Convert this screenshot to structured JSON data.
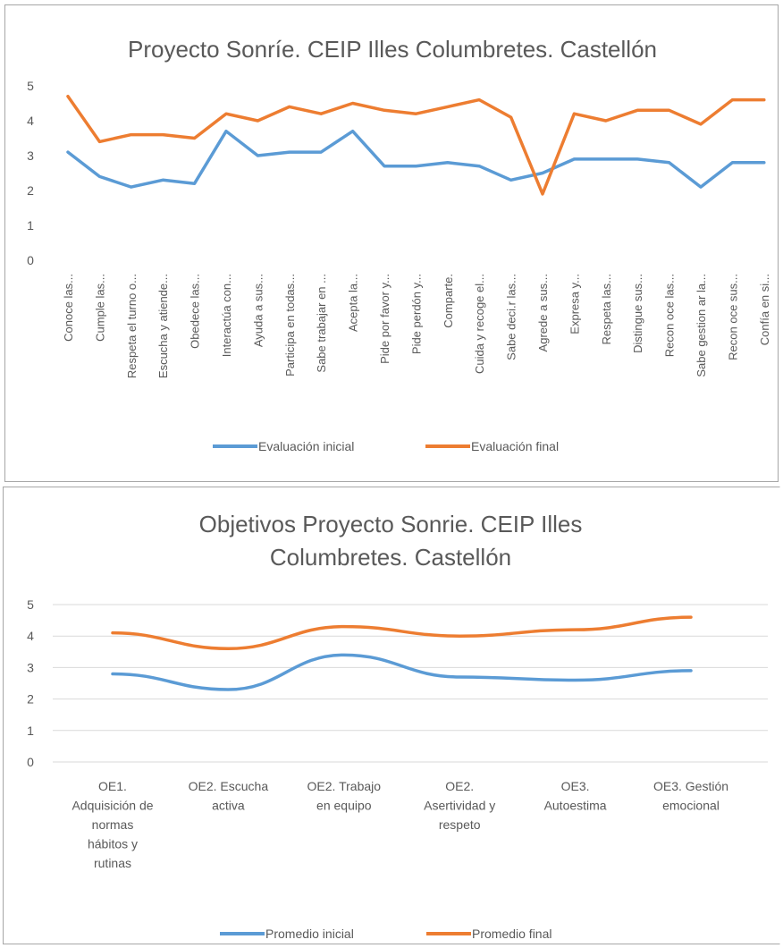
{
  "charts": [
    {
      "type": "line",
      "title": "Proyecto Sonríe. CEIP Illes Columbretes. Castellón",
      "title_lines": [
        "Proyecto Sonríe. CEIP Illes Columbretes. Castellón"
      ],
      "yticks": [
        0,
        1,
        2,
        3,
        4,
        5
      ],
      "ylim": [
        0,
        5
      ],
      "grid": false,
      "legend_position": "bottom",
      "categories": [
        "Conoce las...",
        "Cumple las...",
        "Respeta el turno o...",
        "Escucha y atiende...",
        "Obedece las...",
        "Interactúa con...",
        "Ayuda a sus...",
        "Participa en todas...",
        "Sabe trabajar en ...",
        "Acepta la...",
        "Pide por favor y...",
        "Pide perdón y...",
        "Comparte.",
        "Cuida y recoge el...",
        "Sabe deci.r las...",
        "Agrede a sus...",
        "Expresa y...",
        "Respeta las...",
        "Distingue sus...",
        "Recon oce las...",
        "Sabe gestion ar la...",
        "Recon oce sus...",
        "Confía en si..."
      ],
      "series": [
        {
          "name": "Evaluación inicial",
          "color": "#5b9bd5",
          "values": [
            3.1,
            2.4,
            2.1,
            2.3,
            2.2,
            3.7,
            3.0,
            3.1,
            3.1,
            3.7,
            2.7,
            2.7,
            2.8,
            2.7,
            2.3,
            2.5,
            2.9,
            2.9,
            2.9,
            2.8,
            2.1,
            2.8,
            2.8
          ]
        },
        {
          "name": "Evaluación final",
          "color": "#ed7d31",
          "values": [
            4.7,
            3.4,
            3.6,
            3.6,
            3.5,
            4.2,
            4.0,
            4.4,
            4.2,
            4.5,
            4.3,
            4.2,
            4.4,
            4.6,
            4.1,
            1.9,
            4.2,
            4.0,
            4.3,
            4.3,
            3.9,
            4.6,
            4.6
          ]
        }
      ]
    },
    {
      "type": "line",
      "title": "Objetivos Proyecto Sonrie. CEIP Illes Columbretes. Castellón",
      "title_lines": [
        "Objetivos Proyecto Sonrie. CEIP Illes",
        "Columbretes. Castellón"
      ],
      "yticks": [
        0,
        1,
        2,
        3,
        4,
        5
      ],
      "ylim": [
        0,
        5
      ],
      "grid": true,
      "legend_position": "bottom",
      "categories": [
        [
          "OE1.",
          "Adquisición de",
          "normas",
          "hábitos y",
          "rutinas"
        ],
        [
          "OE2. Escucha",
          "activa"
        ],
        [
          "OE2. Trabajo",
          "en equipo"
        ],
        [
          "OE2.",
          "Asertividad y",
          "respeto"
        ],
        [
          "OE3.",
          "Autoestima"
        ],
        [
          "OE3. Gestión",
          "emocional"
        ]
      ],
      "series": [
        {
          "name": "Promedio inicial",
          "color": "#5b9bd5",
          "values": [
            2.8,
            2.3,
            3.4,
            2.7,
            2.6,
            2.9
          ]
        },
        {
          "name": "Promedio final",
          "color": "#ed7d31",
          "values": [
            4.1,
            3.6,
            4.3,
            4.0,
            4.2,
            4.6
          ]
        }
      ]
    }
  ]
}
